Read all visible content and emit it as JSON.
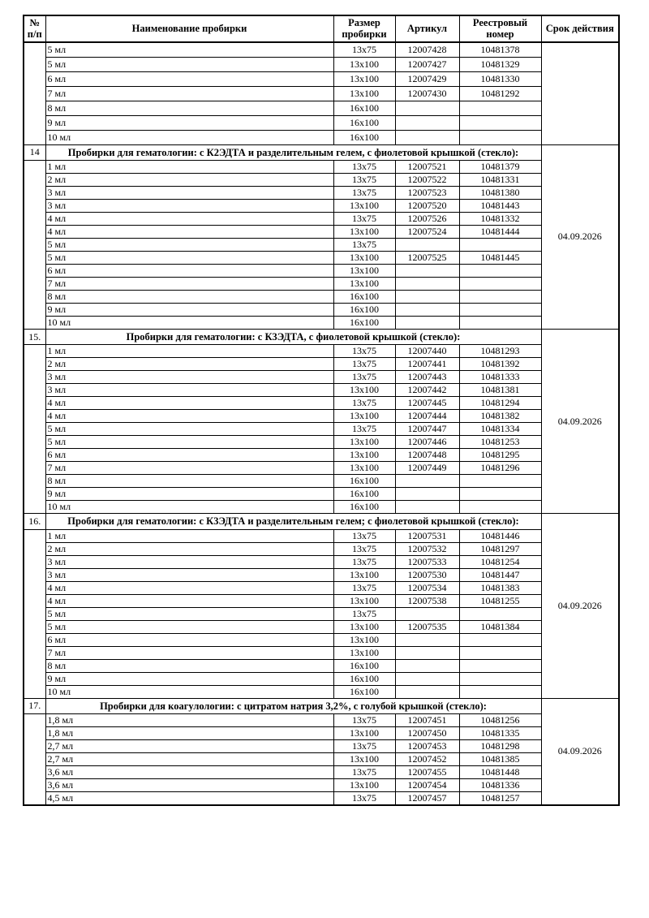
{
  "table": {
    "columns": [
      {
        "label": "№ п/п"
      },
      {
        "label": "Наименование пробирки"
      },
      {
        "label": "Размер пробирки"
      },
      {
        "label": "Артикул"
      },
      {
        "label": "Реестровый номер"
      },
      {
        "label": "Срок действия"
      }
    ],
    "sections": [
      {
        "number": "",
        "title": "",
        "validity": "",
        "rows": [
          {
            "name": "5 мл",
            "size": "13x75",
            "article": "12007428",
            "reg": "10481378"
          },
          {
            "name": "5 мл",
            "size": "13x100",
            "article": "12007427",
            "reg": "10481329"
          },
          {
            "name": "6 мл",
            "size": "13x100",
            "article": "12007429",
            "reg": "10481330"
          },
          {
            "name": "7 мл",
            "size": "13x100",
            "article": "12007430",
            "reg": "10481292"
          },
          {
            "name": "8 мл",
            "size": "16x100",
            "article": "",
            "reg": ""
          },
          {
            "name": "9 мл",
            "size": "16x100",
            "article": "",
            "reg": ""
          },
          {
            "name": "10 мл",
            "size": "16x100",
            "article": "",
            "reg": ""
          }
        ]
      },
      {
        "number": "14",
        "title": "Пробирки для гематологии: с К2ЭДТА и разделительным гелем, с фиолетовой крышкой (стекло):",
        "validity": "04.09.2026",
        "rows": [
          {
            "name": "1 мл",
            "size": "13x75",
            "article": "12007521",
            "reg": "10481379"
          },
          {
            "name": "2 мл",
            "size": "13x75",
            "article": "12007522",
            "reg": "10481331"
          },
          {
            "name": "3 мл",
            "size": "13x75",
            "article": "12007523",
            "reg": "10481380"
          },
          {
            "name": "3 мл",
            "size": "13x100",
            "article": "12007520",
            "reg": "10481443"
          },
          {
            "name": "4 мл",
            "size": "13x75",
            "article": "12007526",
            "reg": "10481332"
          },
          {
            "name": "4 мл",
            "size": "13x100",
            "article": "12007524",
            "reg": "10481444"
          },
          {
            "name": "5 мл",
            "size": "13x75",
            "article": "",
            "reg": ""
          },
          {
            "name": "5 мл",
            "size": "13x100",
            "article": "12007525",
            "reg": "10481445"
          },
          {
            "name": "6 мл",
            "size": "13x100",
            "article": "",
            "reg": ""
          },
          {
            "name": "7 мл",
            "size": "13x100",
            "article": "",
            "reg": ""
          },
          {
            "name": "8 мл",
            "size": "16x100",
            "article": "",
            "reg": ""
          },
          {
            "name": "9 мл",
            "size": "16x100",
            "article": "",
            "reg": ""
          },
          {
            "name": "10 мл",
            "size": "16x100",
            "article": "",
            "reg": ""
          }
        ]
      },
      {
        "number": "15.",
        "title": "Пробирки для гематологии: с К3ЭДТА, с фиолетовой крышкой (стекло):",
        "validity": "04.09.2026",
        "rows": [
          {
            "name": "1 мл",
            "size": "13x75",
            "article": "12007440",
            "reg": "10481293"
          },
          {
            "name": "2 мл",
            "size": "13x75",
            "article": "12007441",
            "reg": "10481392"
          },
          {
            "name": "3 мл",
            "size": "13x75",
            "article": "12007443",
            "reg": "10481333"
          },
          {
            "name": "3 мл",
            "size": "13x100",
            "article": "12007442",
            "reg": "10481381"
          },
          {
            "name": "4 мл",
            "size": "13x75",
            "article": "12007445",
            "reg": "10481294"
          },
          {
            "name": "4 мл",
            "size": "13x100",
            "article": "12007444",
            "reg": "10481382"
          },
          {
            "name": "5 мл",
            "size": "13x75",
            "article": "12007447",
            "reg": "10481334"
          },
          {
            "name": "5 мл",
            "size": "13x100",
            "article": "12007446",
            "reg": "10481253"
          },
          {
            "name": "6 мл",
            "size": "13x100",
            "article": "12007448",
            "reg": "10481295"
          },
          {
            "name": "7 мл",
            "size": "13x100",
            "article": "12007449",
            "reg": "10481296"
          },
          {
            "name": "8 мл",
            "size": "16x100",
            "article": "",
            "reg": ""
          },
          {
            "name": "9 мл",
            "size": "16x100",
            "article": "",
            "reg": ""
          },
          {
            "name": "10 мл",
            "size": "16x100",
            "article": "",
            "reg": ""
          }
        ]
      },
      {
        "number": "16.",
        "title": "Пробирки для гематологии: с К3ЭДТА и разделительным гелем; с фиолетовой крышкой (стекло):",
        "validity": "04.09.2026",
        "rows": [
          {
            "name": "1 мл",
            "size": "13x75",
            "article": "12007531",
            "reg": "10481446"
          },
          {
            "name": "2 мл",
            "size": "13x75",
            "article": "12007532",
            "reg": "10481297"
          },
          {
            "name": "3 мл",
            "size": "13x75",
            "article": "12007533",
            "reg": "10481254"
          },
          {
            "name": "3 мл",
            "size": "13x100",
            "article": "12007530",
            "reg": "10481447"
          },
          {
            "name": "4 мл",
            "size": "13x75",
            "article": "12007534",
            "reg": "10481383"
          },
          {
            "name": "4 мл",
            "size": "13x100",
            "article": "12007538",
            "reg": "10481255"
          },
          {
            "name": "5 мл",
            "size": "13x75",
            "article": "",
            "reg": ""
          },
          {
            "name": "5 мл",
            "size": "13x100",
            "article": "12007535",
            "reg": "10481384"
          },
          {
            "name": "6 мл",
            "size": "13x100",
            "article": "",
            "reg": ""
          },
          {
            "name": "7 мл",
            "size": "13x100",
            "article": "",
            "reg": ""
          },
          {
            "name": "8 мл",
            "size": "16x100",
            "article": "",
            "reg": ""
          },
          {
            "name": "9 мл",
            "size": "16x100",
            "article": "",
            "reg": ""
          },
          {
            "name": "10 мл",
            "size": "16x100",
            "article": "",
            "reg": ""
          }
        ]
      },
      {
        "number": "17.",
        "title": "Пробирки для коагулологии: с цитратом натрия 3,2%, с голубой крышкой (стекло):",
        "validity": "04.09.2026",
        "rows": [
          {
            "name": "1,8 мл",
            "size": "13x75",
            "article": "12007451",
            "reg": "10481256"
          },
          {
            "name": "1,8 мл",
            "size": "13x100",
            "article": "12007450",
            "reg": "10481335"
          },
          {
            "name": "2,7 мл",
            "size": "13x75",
            "article": "12007453",
            "reg": "10481298"
          },
          {
            "name": "2,7 мл",
            "size": "13x100",
            "article": "12007452",
            "reg": "10481385"
          },
          {
            "name": "3,6 мл",
            "size": "13x75",
            "article": "12007455",
            "reg": "10481448"
          },
          {
            "name": "3,6 мл",
            "size": "13x100",
            "article": "12007454",
            "reg": "10481336"
          },
          {
            "name": "4,5 мл",
            "size": "13x75",
            "article": "12007457",
            "reg": "10481257"
          }
        ]
      }
    ]
  }
}
